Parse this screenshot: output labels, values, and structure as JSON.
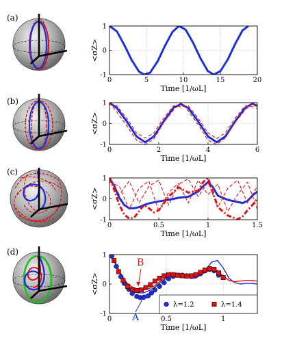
{
  "colors": {
    "blue": "#1f2fd8",
    "red": "#e01010",
    "green": "#19c219",
    "sphere": "#9a9a9a",
    "grid": "#999999"
  },
  "chart_data": [
    {
      "panel": "(a)",
      "type": "line",
      "xlabel": "Time [1/ωL]",
      "ylabel": "<σZ>",
      "xlim": [
        0,
        20
      ],
      "ylim": [
        -1,
        1
      ],
      "xticks": [
        "0",
        "5",
        "10",
        "15",
        "20"
      ],
      "yticks": [
        "1",
        "0",
        "-1"
      ],
      "grid": true,
      "series": [
        {
          "color": "#1f2fd8",
          "style": "solid-thick",
          "x": [
            0,
            1,
            2,
            3,
            4,
            4.7,
            5.5,
            6.5,
            7.5,
            8.5,
            9.4,
            10.3,
            11.3,
            12.3,
            13.3,
            14.1,
            15,
            16,
            17,
            18,
            18.8
          ],
          "y": [
            1,
            0.78,
            0.22,
            -0.4,
            -0.88,
            -1,
            -0.92,
            -0.46,
            0.18,
            0.75,
            1,
            0.85,
            0.32,
            -0.32,
            -0.85,
            -1,
            -0.86,
            -0.38,
            0.26,
            0.82,
            1
          ]
        }
      ]
    },
    {
      "panel": "(b)",
      "type": "line",
      "xlabel": "Time [1/ωL]",
      "ylabel": "<σZ>",
      "xlim": [
        0,
        6
      ],
      "ylim": [
        -1,
        1
      ],
      "xticks": [
        "0",
        "2",
        "4",
        "6"
      ],
      "yticks": [
        "1",
        "0",
        "-1"
      ],
      "grid": true,
      "series": [
        {
          "color": "#1f2fd8",
          "style": "solid-thick",
          "x": [
            0,
            0.3,
            0.7,
            1.1,
            1.45,
            1.8,
            2.2,
            2.6,
            2.9,
            3.2,
            3.6,
            4,
            4.35,
            4.7,
            5.1,
            5.5,
            5.8,
            6
          ],
          "y": [
            1,
            0.74,
            0.1,
            -0.62,
            -0.9,
            -0.62,
            0.1,
            0.76,
            0.93,
            0.74,
            0.1,
            -0.62,
            -0.9,
            -0.62,
            0.1,
            0.74,
            0.95,
            0.85
          ]
        },
        {
          "color": "#e01010",
          "style": "dashed",
          "x": [
            0,
            0.3,
            0.7,
            1.1,
            1.45,
            1.8,
            2.2,
            2.6,
            2.9,
            3.2,
            3.6,
            4,
            4.35,
            4.7,
            5.1,
            5.5,
            5.8,
            6
          ],
          "y": [
            1,
            0.55,
            -0.1,
            -0.8,
            -1,
            -0.75,
            0.05,
            0.65,
            1,
            0.6,
            -0.05,
            -0.8,
            -1,
            -0.7,
            0.05,
            0.65,
            1,
            0.7
          ]
        },
        {
          "color": "#e01010",
          "style": "dashed",
          "x": [
            0,
            0.3,
            0.7,
            1.1,
            1.45,
            1.8,
            2.2,
            2.6,
            2.9,
            3.2,
            3.6,
            4,
            4.35,
            4.7,
            5.1,
            5.5,
            5.8,
            6
          ],
          "y": [
            0.9,
            0.85,
            0.25,
            -0.45,
            -0.7,
            -0.45,
            0.25,
            0.85,
            0.8,
            0.85,
            0.25,
            -0.45,
            -0.72,
            -0.45,
            0.25,
            0.85,
            0.8,
            0.9
          ]
        }
      ]
    },
    {
      "panel": "(c)",
      "type": "line",
      "xlabel": "Time [1/ωL]",
      "ylabel": "<σZ>",
      "xlim": [
        0,
        1.5
      ],
      "ylim": [
        -1,
        1
      ],
      "xticks": [
        "0",
        "0.5",
        "1",
        "1.5"
      ],
      "yticks": [
        "1",
        "0",
        "-1"
      ],
      "grid": true,
      "series": [
        {
          "color": "#1f2fd8",
          "style": "solid-thick",
          "x": [
            0,
            0.05,
            0.1,
            0.15,
            0.2,
            0.25,
            0.3,
            0.35,
            0.4,
            0.5,
            0.6,
            0.7,
            0.8,
            0.9,
            0.95,
            1,
            1.05,
            1.1,
            1.2,
            1.3,
            1.35,
            1.4,
            1.45,
            1.5
          ],
          "y": [
            1,
            0.6,
            0.05,
            -0.3,
            -0.45,
            -0.45,
            -0.4,
            -0.3,
            -0.22,
            -0.12,
            -0.05,
            0.05,
            0.1,
            0.35,
            0.6,
            0.8,
            0.55,
            0.15,
            -0.05,
            -0.15,
            -0.2,
            -0.1,
            0.15,
            0.35
          ]
        },
        {
          "color": "#e01010",
          "style": "dashdot-thick",
          "x": [
            0,
            0.05,
            0.1,
            0.15,
            0.2,
            0.25,
            0.3,
            0.35,
            0.4,
            0.45,
            0.5,
            0.6,
            0.7,
            0.8,
            0.9,
            0.95,
            1,
            1.05,
            1.1,
            1.2,
            1.3,
            1.35,
            1.4,
            1.45,
            1.5
          ],
          "y": [
            1,
            0.4,
            -0.3,
            -0.75,
            -0.95,
            -0.9,
            -0.6,
            -0.3,
            -0.45,
            -0.65,
            -0.55,
            0.1,
            0.55,
            0.3,
            0.4,
            0.8,
            1,
            0.3,
            -0.4,
            -0.8,
            -0.98,
            -0.85,
            -0.55,
            -0.3,
            0.0
          ]
        },
        {
          "color": "#e01010",
          "style": "dashed",
          "x": [
            0,
            0.1,
            0.2,
            0.3,
            0.4,
            0.5,
            0.6,
            0.7,
            0.8,
            0.9,
            1,
            1.1,
            1.2,
            1.3,
            1.4,
            1.5
          ],
          "y": [
            1,
            0.2,
            0.85,
            -0.2,
            0.6,
            0.9,
            -0.3,
            0.7,
            0.95,
            0.1,
            0.8,
            -0.4,
            0.5,
            0.9,
            -0.2,
            0.6
          ]
        },
        {
          "color": "#e01010",
          "style": "dashed",
          "x": [
            0,
            0.1,
            0.2,
            0.3,
            0.4,
            0.5,
            0.6,
            0.7,
            0.8,
            0.9,
            1,
            1.1,
            1.2,
            1.3,
            1.4,
            1.5
          ],
          "y": [
            0.8,
            0.6,
            -0.5,
            0.5,
            0.85,
            -0.6,
            0.3,
            0.75,
            -0.2,
            0.9,
            0.2,
            0.7,
            -0.6,
            0.2,
            0.8,
            -0.5
          ]
        }
      ]
    },
    {
      "panel": "(d)",
      "type": "line",
      "xlabel": "Time [1/ωL]",
      "ylabel": "<σZ>",
      "xlim": [
        0,
        1.3
      ],
      "ylim": [
        -1,
        1
      ],
      "xticks": [
        "0",
        "0.5",
        "1"
      ],
      "yticks": [
        "1",
        "0",
        "-1"
      ],
      "grid": true,
      "legend": [
        "λ=1.2",
        "λ=1.4"
      ],
      "legend_position": "bottom-right",
      "annotations": [
        {
          "text": "A",
          "color": "#1f2fd8"
        },
        {
          "text": "B",
          "color": "#e01010"
        }
      ],
      "series": [
        {
          "color": "#1f2fd8",
          "style": "line",
          "x": [
            0,
            0.05,
            0.1,
            0.15,
            0.2,
            0.25,
            0.3,
            0.35,
            0.4,
            0.45,
            0.5,
            0.55,
            0.6,
            0.65,
            0.7,
            0.75,
            0.8,
            0.85,
            0.9,
            0.95,
            1,
            1.05,
            1.1,
            1.15,
            1.2,
            1.25,
            1.3
          ],
          "y": [
            1,
            0.7,
            0.3,
            0.0,
            -0.2,
            -0.3,
            -0.3,
            -0.22,
            -0.1,
            0.05,
            0.2,
            0.3,
            0.32,
            0.28,
            0.22,
            0.2,
            0.3,
            0.5,
            0.75,
            0.8,
            0.55,
            0.2,
            0.05,
            0.0,
            0.02,
            0.02,
            0.0
          ]
        },
        {
          "color": "#e01010",
          "style": "line",
          "x": [
            0,
            0.05,
            0.1,
            0.15,
            0.2,
            0.25,
            0.3,
            0.35,
            0.4,
            0.45,
            0.5,
            0.55,
            0.6,
            0.65,
            0.7,
            0.75,
            0.8,
            0.85,
            0.9,
            0.95,
            1,
            1.05,
            1.1,
            1.15,
            1.2,
            1.25,
            1.3
          ],
          "y": [
            1,
            0.72,
            0.35,
            0.05,
            -0.1,
            -0.18,
            -0.2,
            -0.15,
            -0.05,
            0.1,
            0.25,
            0.3,
            0.3,
            0.27,
            0.24,
            0.24,
            0.3,
            0.42,
            0.5,
            0.45,
            0.28,
            0.12,
            0.08,
            0.1,
            0.12,
            0.12,
            0.1
          ]
        },
        {
          "name": "λ=1.2",
          "color": "#1f2fd8",
          "style": "markers-circle",
          "x": [
            0.02,
            0.06,
            0.1,
            0.13,
            0.17,
            0.2,
            0.24,
            0.27,
            0.3,
            0.34,
            0.37,
            0.4,
            0.44,
            0.48,
            0.52,
            0.56,
            0.6,
            0.64,
            0.68,
            0.72,
            0.76,
            0.8,
            0.84,
            0.88,
            0.92,
            0.96
          ],
          "y": [
            0.95,
            0.6,
            0.25,
            0.02,
            -0.18,
            -0.32,
            -0.42,
            -0.46,
            -0.45,
            -0.4,
            -0.3,
            -0.2,
            -0.08,
            0.05,
            0.18,
            0.26,
            0.3,
            0.3,
            0.28,
            0.26,
            0.28,
            0.35,
            0.45,
            0.5,
            0.45,
            0.3
          ]
        },
        {
          "name": "λ=1.4",
          "color": "#e01010",
          "style": "markers-square",
          "x": [
            0.04,
            0.08,
            0.12,
            0.16,
            0.2,
            0.24,
            0.28,
            0.32,
            0.36,
            0.4,
            0.44,
            0.48,
            0.52,
            0.56,
            0.6,
            0.64,
            0.68,
            0.72,
            0.76,
            0.8,
            0.84,
            0.88,
            0.92,
            0.96,
            1.0
          ],
          "y": [
            0.8,
            0.42,
            0.12,
            -0.08,
            -0.18,
            -0.22,
            -0.2,
            -0.12,
            -0.02,
            0.1,
            0.2,
            0.28,
            0.32,
            0.32,
            0.3,
            0.28,
            0.27,
            0.28,
            0.32,
            0.4,
            0.48,
            0.52,
            0.5,
            0.38,
            0.22
          ]
        }
      ]
    }
  ]
}
